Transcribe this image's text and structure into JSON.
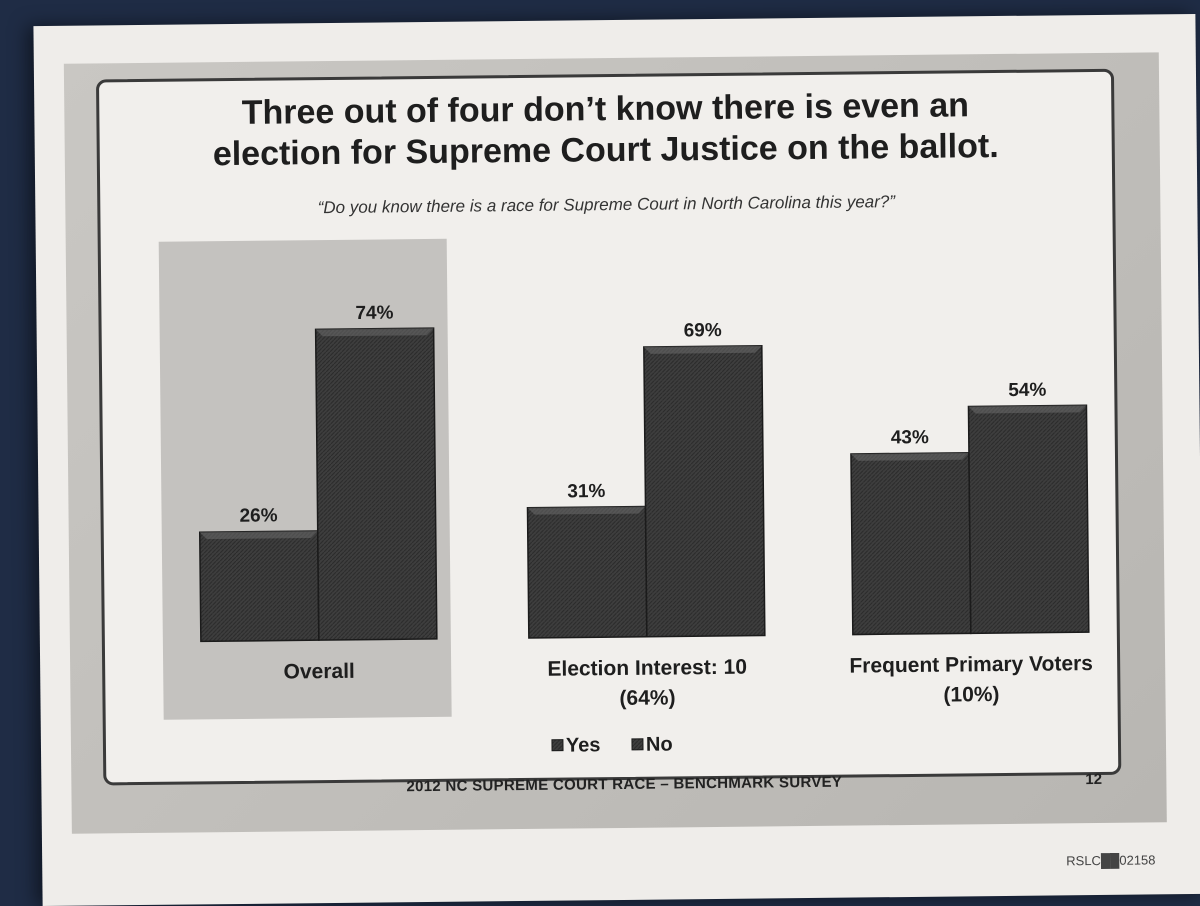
{
  "slide": {
    "title_line1": "Three out of four don’t know there is even an",
    "title_line2": "election for Supreme Court Justice on the ballot.",
    "question": "“Do you know there is a race for Supreme Court in North Carolina this year?”",
    "footer": "2012 NC SUPREME COURT RACE – BENCHMARK SURVEY",
    "page_number": "12",
    "bates_number": "RSLC██02158"
  },
  "chart_data": {
    "type": "bar",
    "categories": [
      [
        "Overall"
      ],
      [
        "Election Interest: 10",
        "(64%)"
      ],
      [
        "Frequent Primary Voters",
        "(10%)"
      ]
    ],
    "series": [
      {
        "name": "Yes",
        "values": [
          26,
          31,
          43
        ],
        "labels": [
          "26%",
          "31%",
          "43%"
        ]
      },
      {
        "name": "No",
        "values": [
          74,
          69,
          54
        ],
        "labels": [
          "74%",
          "69%",
          "54%"
        ]
      }
    ],
    "legend": {
      "position": "bottom-center",
      "entries": [
        "Yes",
        "No"
      ]
    },
    "highlighted_category": "Overall",
    "ylim": [
      0,
      100
    ],
    "colors": {
      "bar": "#3d3d3d",
      "bar_edge": "#1b1b1b",
      "highlight": "#c4c2bf"
    }
  }
}
